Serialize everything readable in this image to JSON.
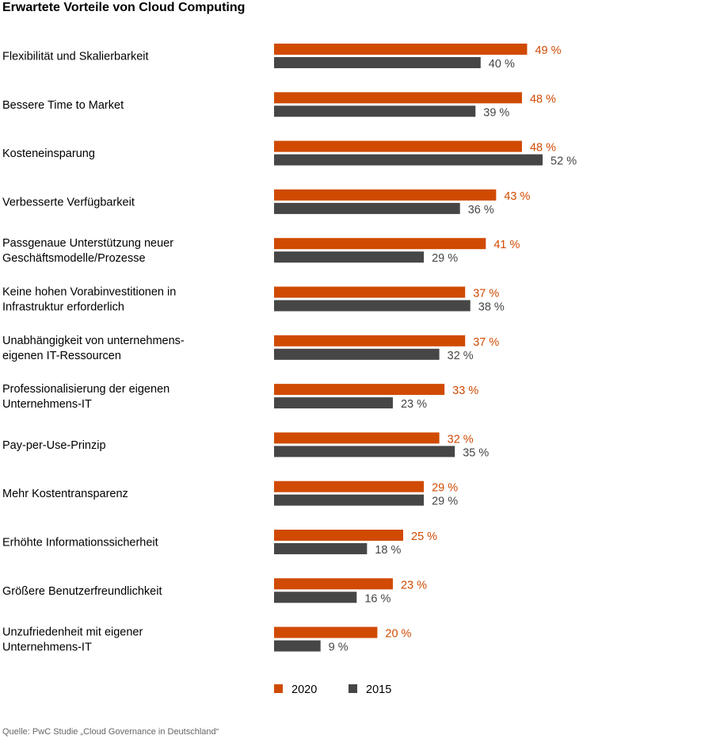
{
  "title": "Erwartete Vorteile von Cloud Computing",
  "source": "Quelle: PwC Studie „Cloud Governance in Deutschland“",
  "chart_data": {
    "type": "bar",
    "orientation": "horizontal",
    "title": "Erwartete Vorteile von Cloud Computing",
    "unit": "%",
    "xlim": [
      0,
      55
    ],
    "grid": false,
    "legend_position": "bottom",
    "categories": [
      [
        "Flexibilität und Skalierbarkeit"
      ],
      [
        "Bessere Time to Market"
      ],
      [
        "Kosteneinsparung"
      ],
      [
        "Verbesserte Verfügbarkeit"
      ],
      [
        "Passgenaue Unterstützung neuer",
        "Geschäftsmodelle/Prozesse"
      ],
      [
        "Keine hohen Vorabinvestitionen in",
        "Infrastruktur erforderlich"
      ],
      [
        "Unabhängigkeit von unternehmens-",
        "eigenen IT-Ressourcen"
      ],
      [
        "Professionalisierung der eigenen",
        "Unternehmens-IT"
      ],
      [
        "Pay-per-Use-Prinzip"
      ],
      [
        "Mehr Kostentransparenz"
      ],
      [
        "Erhöhte Informationssicherheit"
      ],
      [
        "Größere Benutzerfreundlichkeit"
      ],
      [
        "Unzufriedenheit mit eigener",
        "Unternehmens-IT"
      ]
    ],
    "series": [
      {
        "name": "2020",
        "color": "#d04a02",
        "label_color": "#d04a02",
        "values": [
          49,
          48,
          48,
          43,
          41,
          37,
          37,
          33,
          32,
          29,
          25,
          23,
          20
        ]
      },
      {
        "name": "2015",
        "color": "#464646",
        "label_color": "#464646",
        "values": [
          40,
          39,
          52,
          36,
          29,
          38,
          32,
          23,
          35,
          29,
          18,
          16,
          9
        ]
      }
    ]
  }
}
